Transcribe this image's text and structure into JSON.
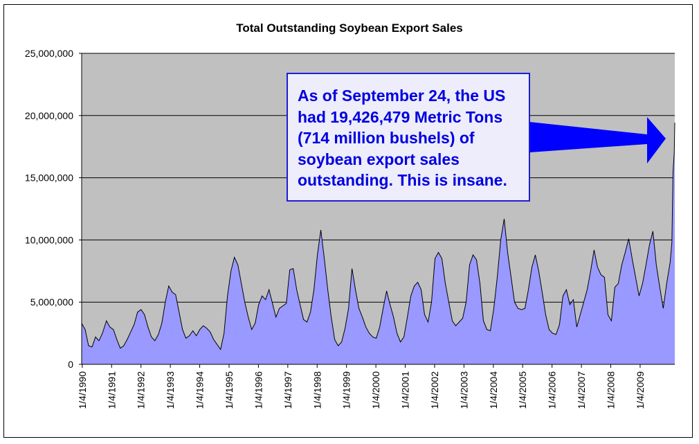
{
  "chart_data": {
    "type": "area",
    "title": "Total Outstanding Soybean Export Sales",
    "xlabel": "",
    "ylabel": "",
    "ylim": [
      0,
      25000000
    ],
    "y_ticks": [
      "0",
      "5,000,000",
      "10,000,000",
      "15,000,000",
      "20,000,000",
      "25,000,000"
    ],
    "y_tick_values": [
      0,
      5000000,
      10000000,
      15000000,
      20000000,
      25000000
    ],
    "x_tick_labels": [
      "1/4/1990",
      "1/4/1991",
      "1/4/1992",
      "1/4/1993",
      "1/4/1994",
      "1/4/1995",
      "1/4/1996",
      "1/4/1997",
      "1/4/1998",
      "1/4/1999",
      "1/4/2000",
      "1/4/2001",
      "1/4/2002",
      "1/4/2003",
      "1/4/2004",
      "1/4/2005",
      "1/4/2006",
      "1/4/2007",
      "1/4/2008",
      "1/4/2009"
    ],
    "xlim": [
      "1990-01-04",
      "2009-09-24"
    ],
    "grid": true,
    "colors": {
      "plot_background": "#c0c0c0",
      "area_fill": "#9999ff",
      "area_line": "#000000",
      "callout_text": "#0000e0",
      "callout_border": "#1d1dd6",
      "callout_bg": "#ededfc",
      "arrow": "#0000ff"
    },
    "series": [
      {
        "x": [
          "1990-01-04",
          "1990-02-15",
          "1990-03-29",
          "1990-05-10",
          "1990-06-21",
          "1990-08-02",
          "1990-09-13",
          "1990-11-01",
          "1990-12-13",
          "1991-01-24",
          "1991-03-07",
          "1991-04-18",
          "1991-05-30",
          "1991-07-11",
          "1991-08-22",
          "1991-10-03",
          "1991-11-14",
          "1991-12-26",
          "1992-02-06",
          "1992-03-19",
          "1992-04-30",
          "1992-06-11",
          "1992-07-23",
          "1992-09-03",
          "1992-10-15",
          "1992-11-26",
          "1993-01-07",
          "1993-02-18",
          "1993-04-01",
          "1993-05-13",
          "1993-06-24",
          "1993-08-05",
          "1993-09-16",
          "1993-10-28",
          "1993-12-09",
          "1994-01-20",
          "1994-03-03",
          "1994-04-14",
          "1994-05-26",
          "1994-07-07",
          "1994-08-18",
          "1994-09-29",
          "1994-11-10",
          "1994-12-22",
          "1995-02-02",
          "1995-03-16",
          "1995-04-27",
          "1995-06-08",
          "1995-07-20",
          "1995-08-31",
          "1995-10-12",
          "1995-11-23",
          "1996-01-04",
          "1996-02-15",
          "1996-03-28",
          "1996-05-09",
          "1996-06-20",
          "1996-08-01",
          "1996-09-12",
          "1996-10-24",
          "1996-12-05",
          "1997-01-16",
          "1997-02-27",
          "1997-04-10",
          "1997-05-22",
          "1997-07-03",
          "1997-08-14",
          "1997-09-25",
          "1997-11-06",
          "1997-12-18",
          "1998-01-29",
          "1998-03-12",
          "1998-04-23",
          "1998-06-04",
          "1998-07-16",
          "1998-08-27",
          "1998-10-08",
          "1998-11-19",
          "1998-12-31",
          "1999-02-11",
          "1999-03-25",
          "1999-05-06",
          "1999-06-17",
          "1999-07-29",
          "1999-09-09",
          "1999-10-21",
          "1999-12-02",
          "2000-01-13",
          "2000-02-24",
          "2000-04-06",
          "2000-05-18",
          "2000-06-29",
          "2000-08-10",
          "2000-09-21",
          "2000-11-02",
          "2000-12-14",
          "2001-01-25",
          "2001-03-08",
          "2001-04-19",
          "2001-05-31",
          "2001-07-12",
          "2001-08-23",
          "2001-10-04",
          "2001-11-15",
          "2001-12-27",
          "2002-02-07",
          "2002-03-21",
          "2002-05-02",
          "2002-06-13",
          "2002-07-25",
          "2002-09-05",
          "2002-10-17",
          "2002-11-28",
          "2003-01-09",
          "2003-02-20",
          "2003-04-03",
          "2003-05-15",
          "2003-06-26",
          "2003-08-07",
          "2003-09-18",
          "2003-10-30",
          "2003-12-11",
          "2004-01-22",
          "2004-03-04",
          "2004-04-15",
          "2004-05-27",
          "2004-07-08",
          "2004-08-19",
          "2004-09-30",
          "2004-11-11",
          "2004-12-23",
          "2005-02-03",
          "2005-03-17",
          "2005-04-28",
          "2005-06-09",
          "2005-07-21",
          "2005-09-01",
          "2005-10-13",
          "2005-11-24",
          "2006-01-05",
          "2006-02-16",
          "2006-03-30",
          "2006-05-11",
          "2006-06-22",
          "2006-08-03",
          "2006-09-14",
          "2006-10-26",
          "2006-12-07",
          "2007-01-18",
          "2007-03-01",
          "2007-04-12",
          "2007-05-24",
          "2007-07-05",
          "2007-08-16",
          "2007-09-27",
          "2007-11-08",
          "2007-12-20",
          "2008-01-31",
          "2008-03-13",
          "2008-04-24",
          "2008-06-05",
          "2008-07-17",
          "2008-08-28",
          "2008-10-09",
          "2008-11-20",
          "2009-01-01",
          "2009-02-12",
          "2009-03-26",
          "2009-05-07",
          "2009-06-18",
          "2009-07-30",
          "2009-08-20",
          "2009-09-03",
          "2009-09-17",
          "2009-09-24"
        ],
        "values": [
          3300000,
          2800000,
          1500000,
          1400000,
          2200000,
          1900000,
          2500000,
          3500000,
          3000000,
          2800000,
          2000000,
          1300000,
          1500000,
          2000000,
          2600000,
          3200000,
          4200000,
          4400000,
          4000000,
          3000000,
          2200000,
          1900000,
          2400000,
          3300000,
          5000000,
          6300000,
          5800000,
          5600000,
          4200000,
          2800000,
          2100000,
          2300000,
          2700000,
          2300000,
          2800000,
          3100000,
          2900000,
          2600000,
          2000000,
          1600000,
          1200000,
          2500000,
          5500000,
          7500000,
          8600000,
          8000000,
          6500000,
          5000000,
          3800000,
          2800000,
          3300000,
          4800000,
          5500000,
          5200000,
          6000000,
          4900000,
          3800000,
          4500000,
          4700000,
          4900000,
          7600000,
          7700000,
          6000000,
          4800000,
          3600000,
          3400000,
          4200000,
          6000000,
          8800000,
          10800000,
          8500000,
          6000000,
          3800000,
          2000000,
          1500000,
          1800000,
          2900000,
          4500000,
          7700000,
          6000000,
          4500000,
          3800000,
          3000000,
          2500000,
          2200000,
          2100000,
          3000000,
          4500000,
          5900000,
          4800000,
          3800000,
          2500000,
          1800000,
          2200000,
          3800000,
          5500000,
          6300000,
          6600000,
          6000000,
          4000000,
          3400000,
          5000000,
          8500000,
          9000000,
          8500000,
          6500000,
          5000000,
          3500000,
          3100000,
          3400000,
          3700000,
          5000000,
          8000000,
          8800000,
          8400000,
          6500000,
          3500000,
          2800000,
          2700000,
          4500000,
          7000000,
          10000000,
          11700000,
          9000000,
          7000000,
          5000000,
          4500000,
          4400000,
          4500000,
          6000000,
          7800000,
          8800000,
          7500000,
          5800000,
          4000000,
          2800000,
          2500000,
          2400000,
          3200000,
          5500000,
          6000000,
          4800000,
          5200000,
          3000000,
          4000000,
          5000000,
          6000000,
          7500000,
          9200000,
          7800000,
          7200000,
          7000000,
          4000000,
          3500000,
          6200000,
          6500000,
          8000000,
          9000000,
          10100000,
          8500000,
          7000000,
          5500000,
          6500000,
          8000000,
          9600000,
          10700000,
          8000000,
          6200000,
          4500000,
          6500000,
          8200000,
          9800000,
          15500000,
          17000000,
          19426479
        ]
      }
    ],
    "annotation": {
      "lines": [
        "As of September 24, the US",
        "had 19,426,479 Metric Tons",
        "(714 million bushels) of",
        "soybean export sales",
        "outstanding. This is insane."
      ]
    }
  }
}
